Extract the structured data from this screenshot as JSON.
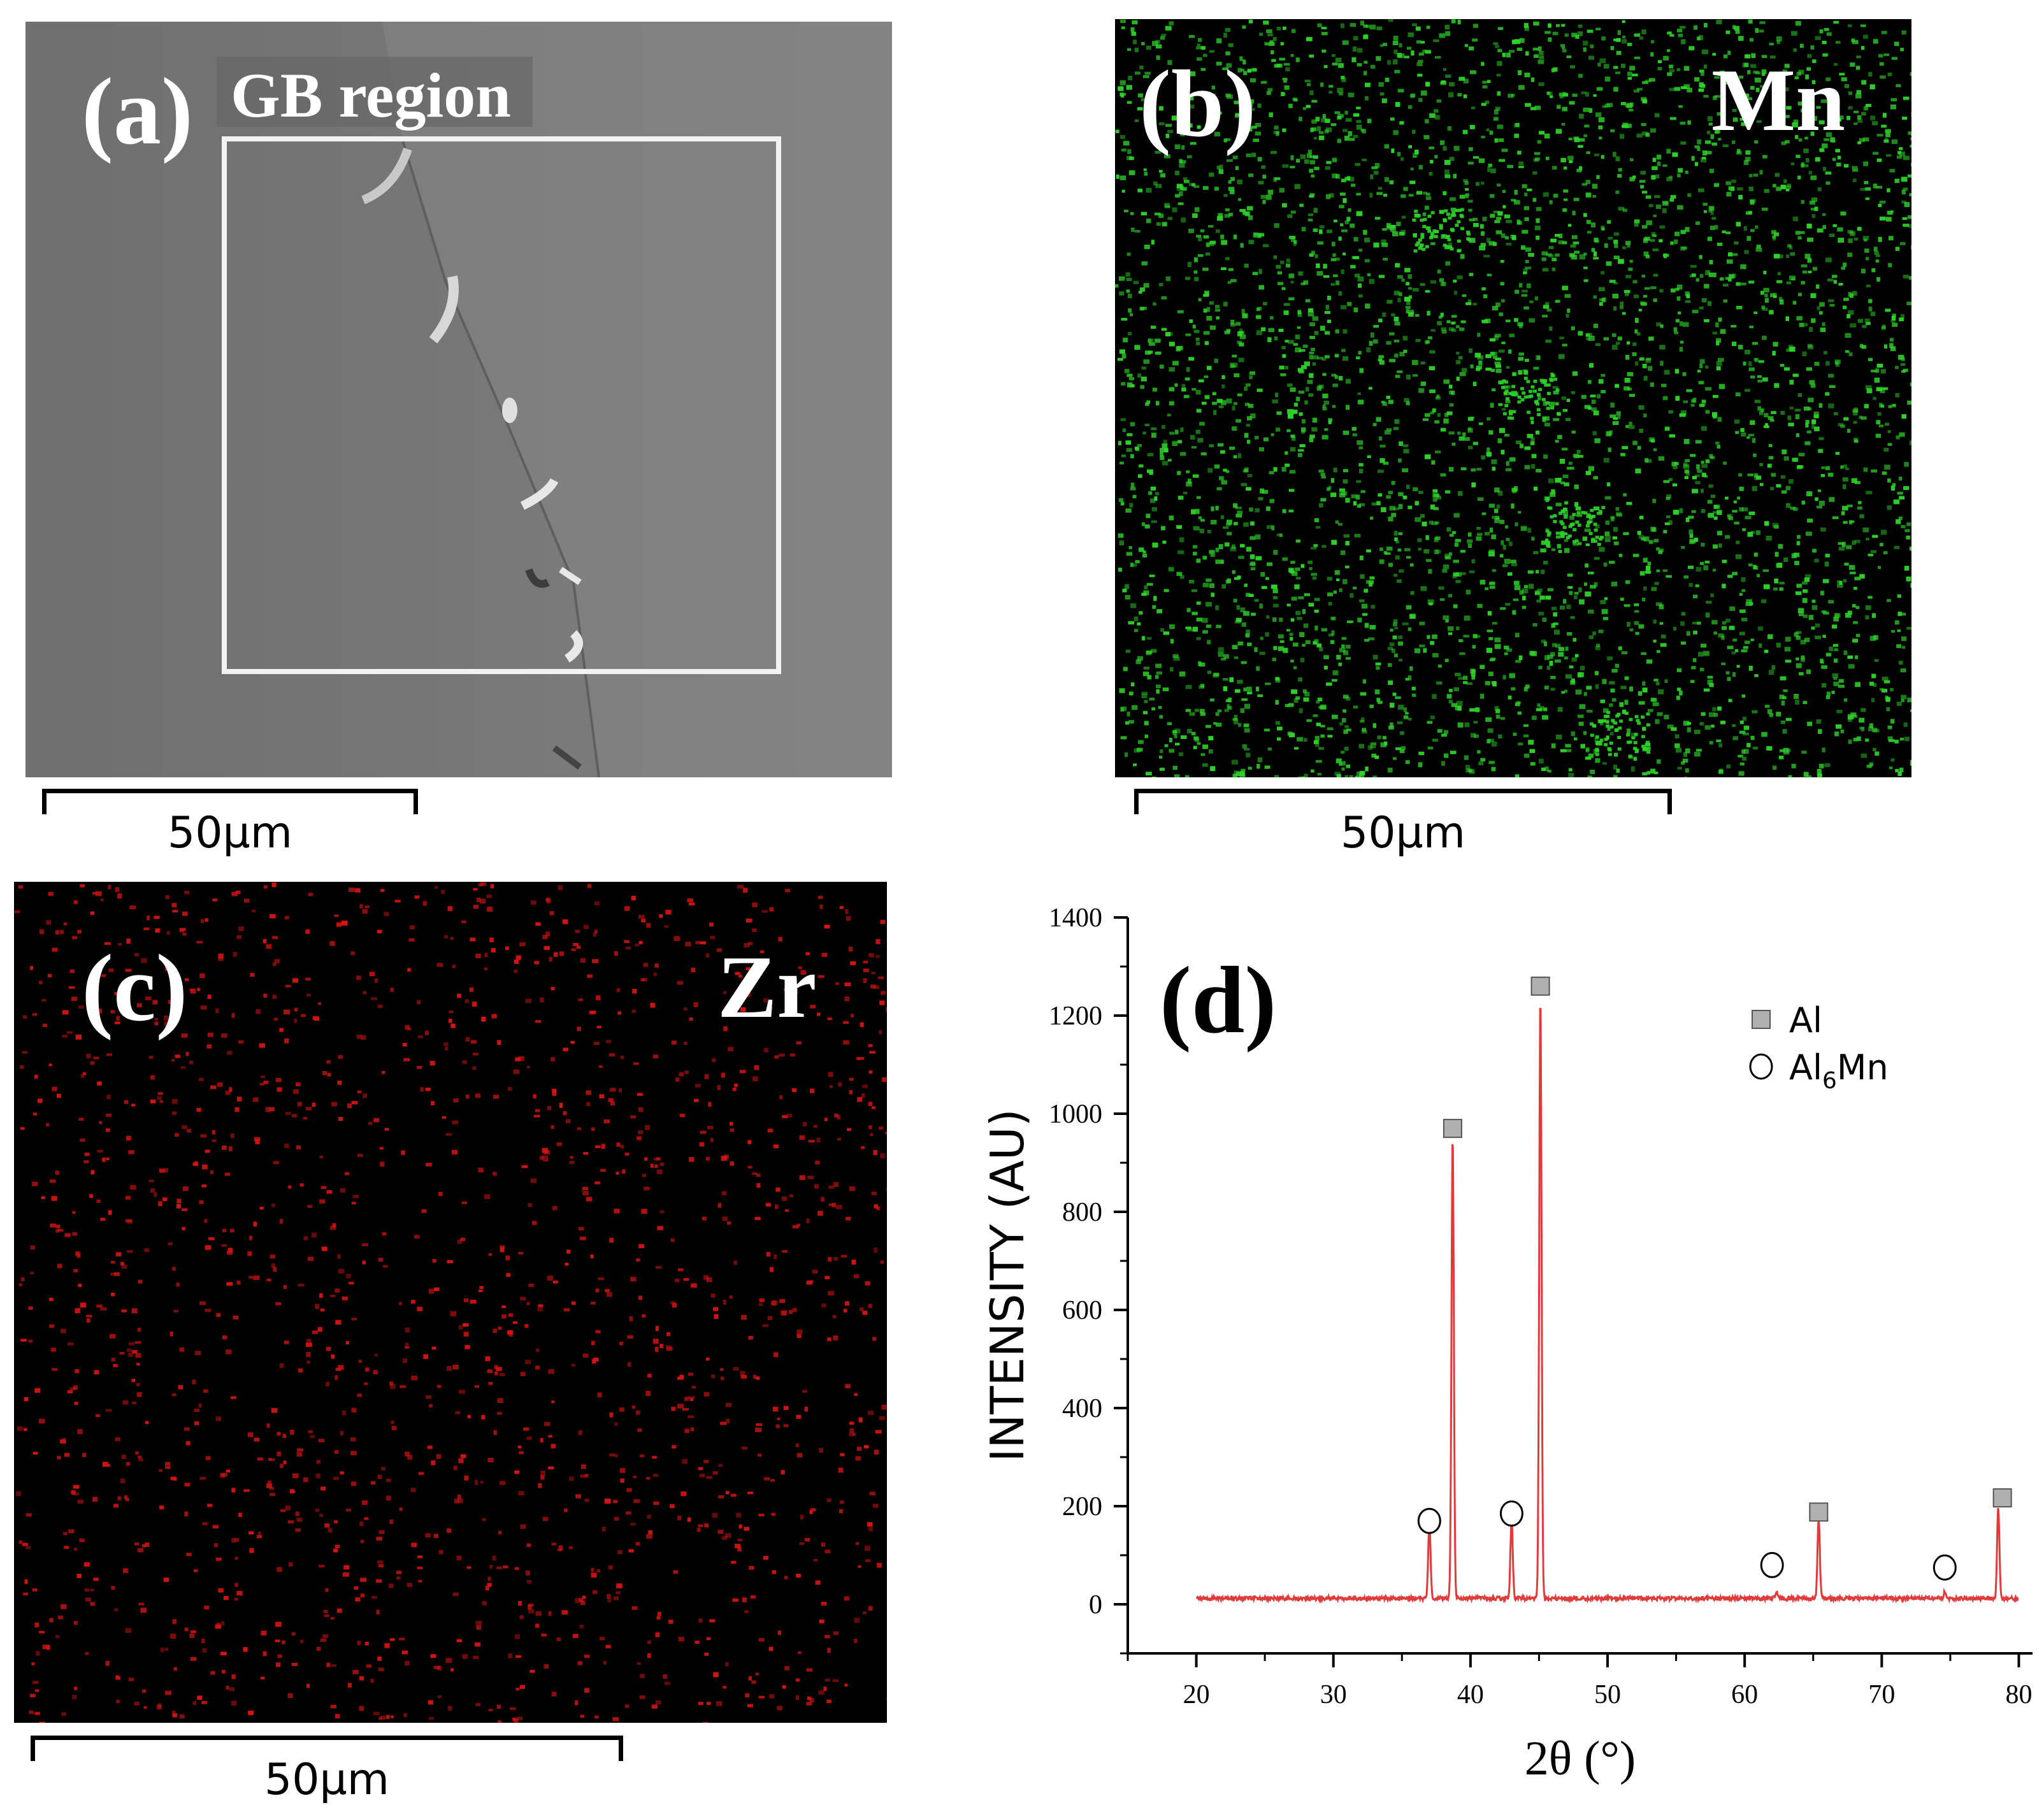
{
  "panels": {
    "a": {
      "label": "(a)",
      "region_label": "GB region",
      "scale_text": "50µm"
    },
    "b": {
      "label": "(b)",
      "element": "Mn",
      "scale_text": "50µm",
      "dot_color": "#2fd32a"
    },
    "c": {
      "label": "(c)",
      "element": "Zr",
      "scale_text": "50µm",
      "dot_color": "#d21414"
    },
    "d": {
      "label": "(d)"
    }
  },
  "chart_data": {
    "type": "line",
    "title": "",
    "xlabel": "2θ (°)",
    "ylabel": "INTENSITY (AU)",
    "xlim": [
      15,
      81
    ],
    "ylim": [
      -100,
      1400
    ],
    "xticks": [
      20,
      30,
      40,
      50,
      60,
      70,
      80
    ],
    "yticks": [
      0,
      200,
      400,
      600,
      800,
      1000,
      1200,
      1400
    ],
    "line_color": "#e03a3a",
    "baseline": 12,
    "x_start": 20,
    "x_end": 80,
    "peaks": [
      {
        "x": 37.0,
        "y": 165,
        "phase": "Al6Mn"
      },
      {
        "x": 38.7,
        "y": 960,
        "phase": "Al"
      },
      {
        "x": 43.0,
        "y": 175,
        "phase": "Al6Mn"
      },
      {
        "x": 45.1,
        "y": 1250,
        "phase": "Al"
      },
      {
        "x": 62.3,
        "y": 25,
        "phase": "Al6Mn"
      },
      {
        "x": 65.4,
        "y": 175,
        "phase": "Al"
      },
      {
        "x": 74.6,
        "y": 25,
        "phase": "Al6Mn"
      },
      {
        "x": 78.5,
        "y": 200,
        "phase": "Al"
      }
    ],
    "markers": [
      {
        "x": 37.0,
        "y": 170,
        "shape": "circle"
      },
      {
        "x": 38.7,
        "y": 970,
        "shape": "square"
      },
      {
        "x": 43.0,
        "y": 185,
        "shape": "circle"
      },
      {
        "x": 45.1,
        "y": 1260,
        "shape": "square"
      },
      {
        "x": 62.0,
        "y": 80,
        "shape": "circle"
      },
      {
        "x": 65.4,
        "y": 188,
        "shape": "square"
      },
      {
        "x": 74.6,
        "y": 75,
        "shape": "circle"
      },
      {
        "x": 78.8,
        "y": 217,
        "shape": "square"
      }
    ],
    "legend": {
      "placement": "top-right",
      "entries": [
        {
          "label": "Al",
          "marker": "square"
        },
        {
          "label": "Al",
          "subscript": "6",
          "suffix": "Mn",
          "marker": "circle"
        }
      ]
    }
  }
}
